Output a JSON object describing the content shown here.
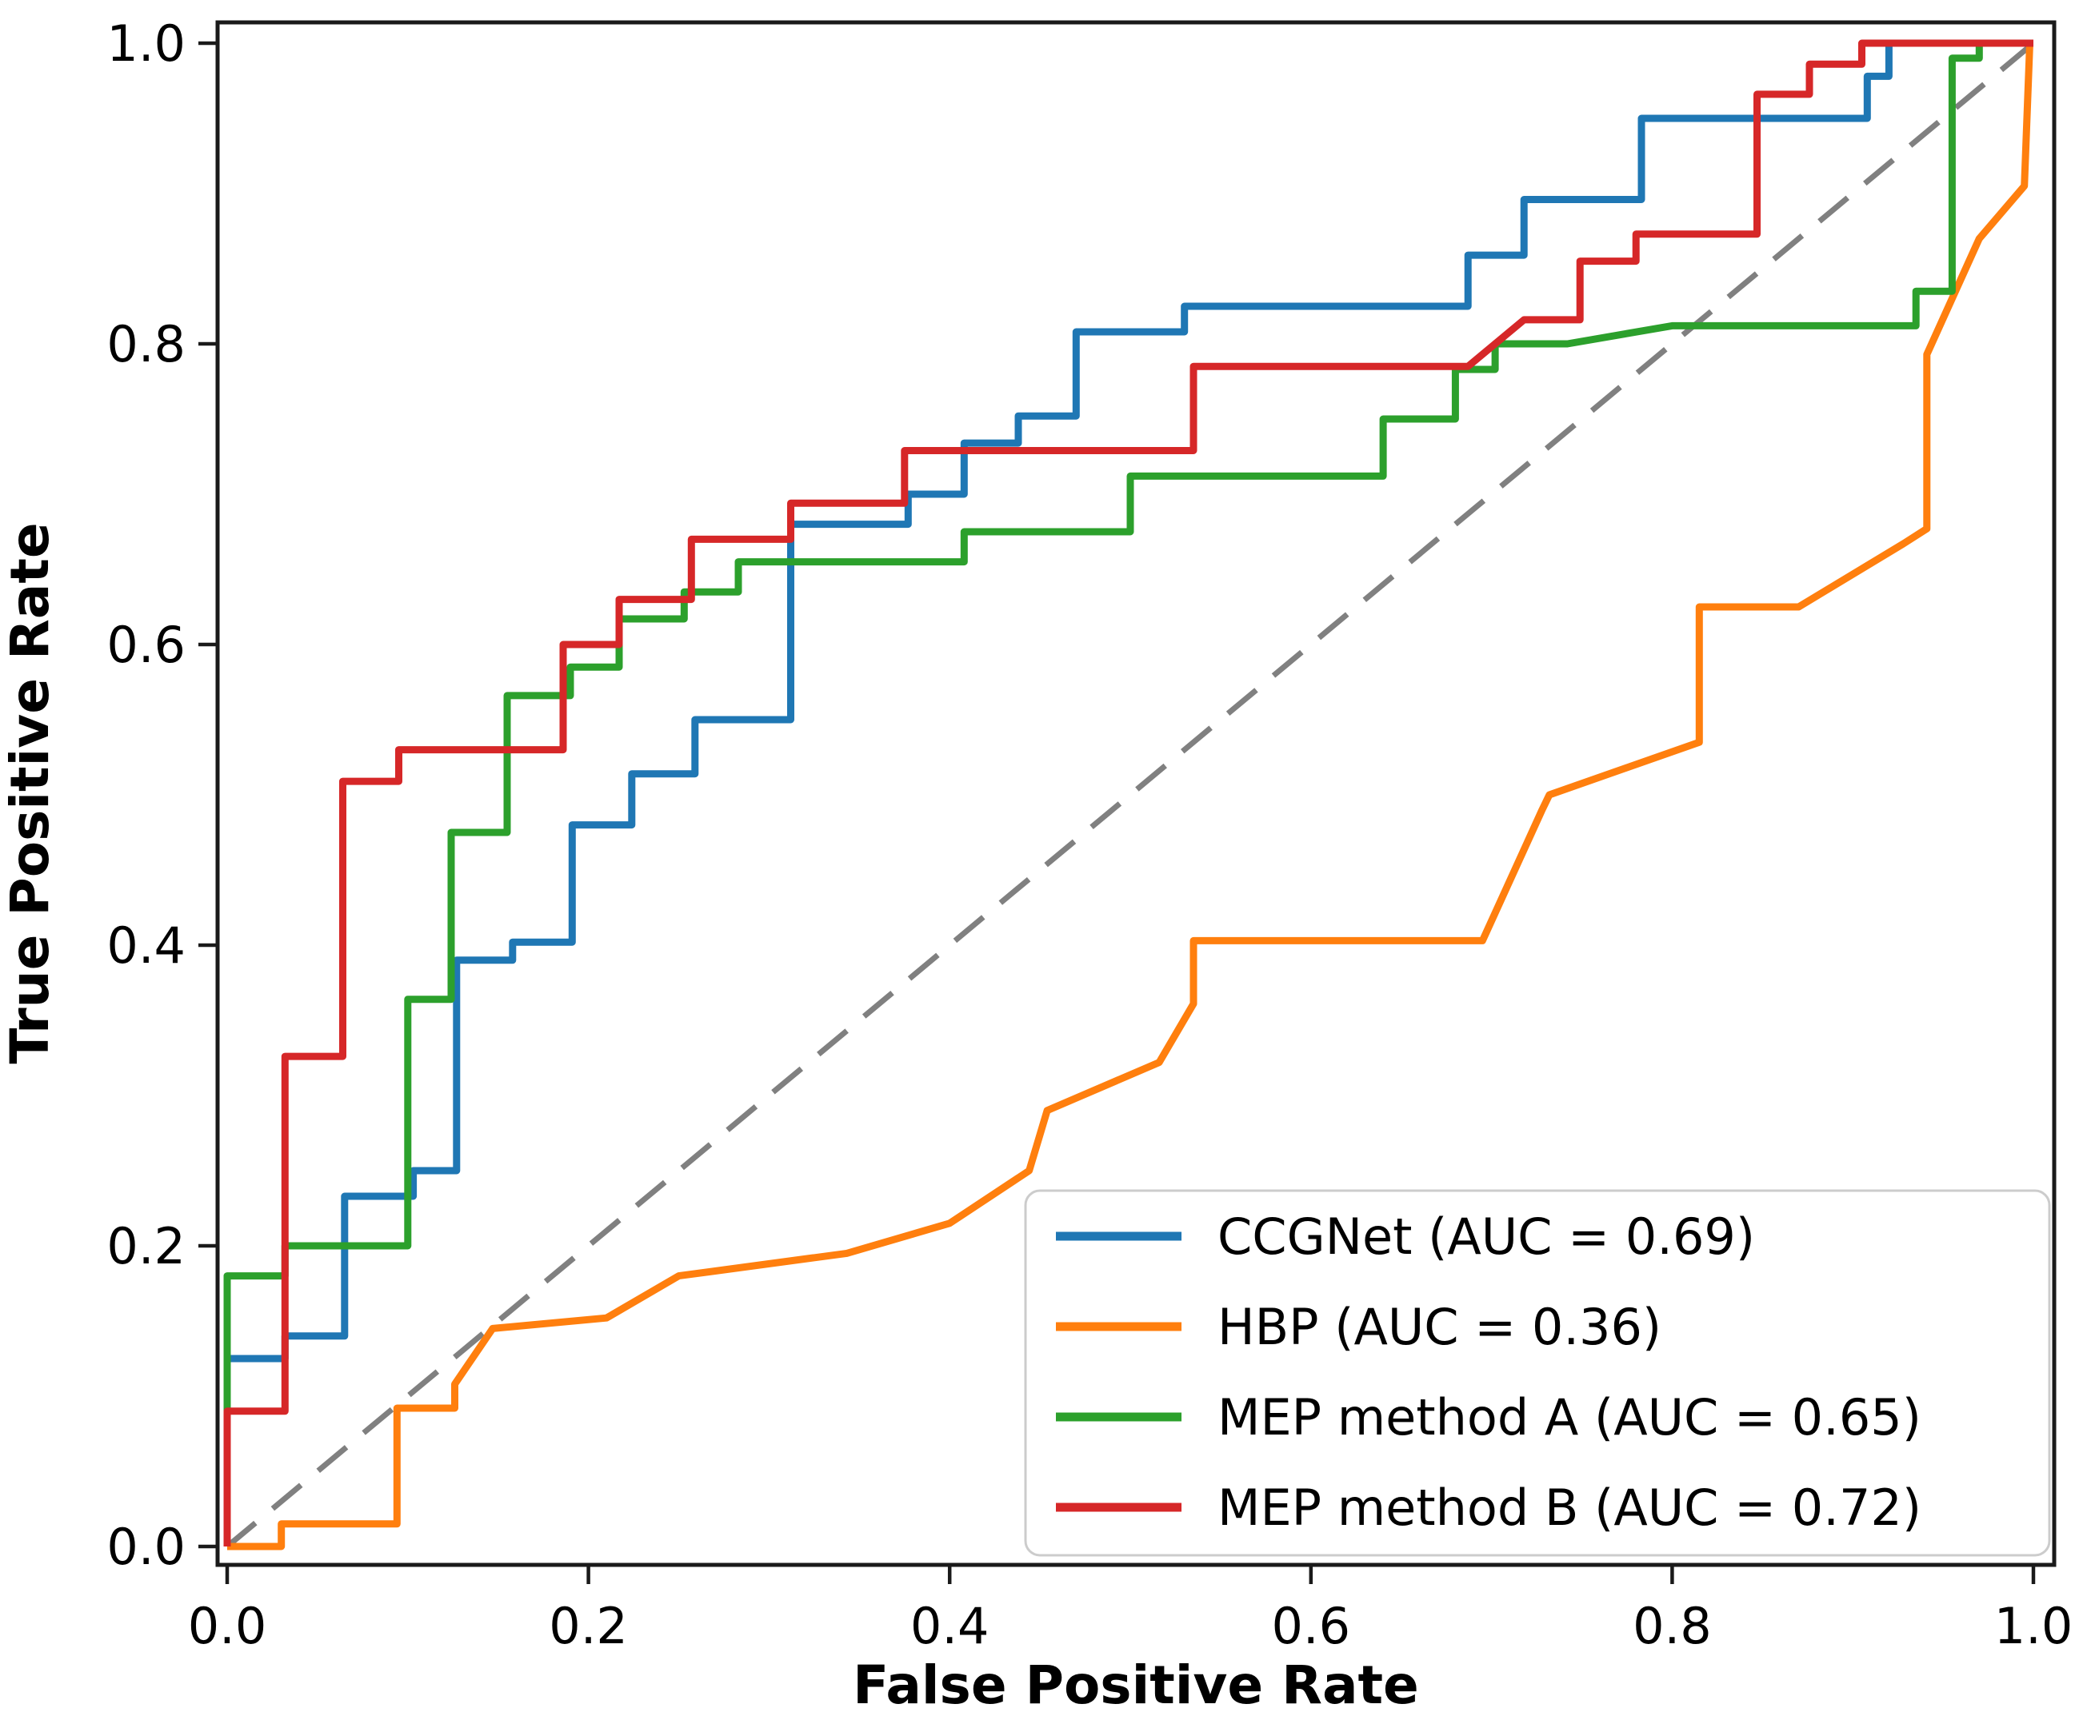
{
  "chart_data": {
    "type": "line",
    "subtype": "roc-step-curves",
    "title": "",
    "xlabel": "False Positive Rate",
    "ylabel": "True Positive Rate",
    "xlim": [
      0.0,
      1.0
    ],
    "ylim": [
      0.0,
      1.0
    ],
    "grid": false,
    "xticks": [
      0.0,
      0.2,
      0.4,
      0.6,
      0.8,
      1.0
    ],
    "yticks": [
      0.0,
      0.2,
      0.4,
      0.6,
      0.8,
      1.0
    ],
    "x_tick_labels": [
      "0.0",
      "0.2",
      "0.4",
      "0.6",
      "0.8",
      "1.0"
    ],
    "y_tick_labels": [
      "0.0",
      "0.2",
      "0.4",
      "0.6",
      "0.8",
      "1.0"
    ],
    "legend_position": "lower right",
    "series": [
      {
        "name": "ccgnet",
        "label": "CCGNet (AUC = 0.69)",
        "auc": 0.69,
        "color": "#1f77b4",
        "points": [
          [
            0,
            0
          ],
          [
            0,
            0.125
          ],
          [
            0.032,
            0.125
          ],
          [
            0.032,
            0.14
          ],
          [
            0.065,
            0.14
          ],
          [
            0.065,
            0.233
          ],
          [
            0.103,
            0.233
          ],
          [
            0.103,
            0.25
          ],
          [
            0.127,
            0.25
          ],
          [
            0.127,
            0.39
          ],
          [
            0.158,
            0.39
          ],
          [
            0.158,
            0.402
          ],
          [
            0.191,
            0.402
          ],
          [
            0.191,
            0.48
          ],
          [
            0.224,
            0.48
          ],
          [
            0.224,
            0.514
          ],
          [
            0.259,
            0.514
          ],
          [
            0.259,
            0.55
          ],
          [
            0.312,
            0.55
          ],
          [
            0.312,
            0.68
          ],
          [
            0.377,
            0.68
          ],
          [
            0.377,
            0.7
          ],
          [
            0.408,
            0.7
          ],
          [
            0.408,
            0.734
          ],
          [
            0.438,
            0.734
          ],
          [
            0.438,
            0.752
          ],
          [
            0.47,
            0.752
          ],
          [
            0.47,
            0.808
          ],
          [
            0.53,
            0.808
          ],
          [
            0.53,
            0.825
          ],
          [
            0.687,
            0.825
          ],
          [
            0.687,
            0.859
          ],
          [
            0.718,
            0.859
          ],
          [
            0.718,
            0.896
          ],
          [
            0.783,
            0.896
          ],
          [
            0.783,
            0.95
          ],
          [
            0.908,
            0.95
          ],
          [
            0.908,
            0.978
          ],
          [
            0.92,
            0.978
          ],
          [
            0.92,
            1
          ],
          [
            1,
            1
          ]
        ]
      },
      {
        "name": "hbp",
        "label": "HBP (AUC = 0.36)",
        "auc": 0.36,
        "color": "#ff7f0e",
        "points": [
          [
            0,
            0
          ],
          [
            0.03,
            0
          ],
          [
            0.03,
            0.015
          ],
          [
            0.094,
            0.015
          ],
          [
            0.094,
            0.092
          ],
          [
            0.126,
            0.092
          ],
          [
            0.126,
            0.108
          ],
          [
            0.147,
            0.145
          ],
          [
            0.21,
            0.152
          ],
          [
            0.25,
            0.18
          ],
          [
            0.343,
            0.195
          ],
          [
            0.4,
            0.215
          ],
          [
            0.444,
            0.25
          ],
          [
            0.454,
            0.29
          ],
          [
            0.516,
            0.322
          ],
          [
            0.535,
            0.361
          ],
          [
            0.535,
            0.403
          ],
          [
            0.695,
            0.403
          ],
          [
            0.728,
            0.49
          ],
          [
            0.732,
            0.5
          ],
          [
            0.815,
            0.535
          ],
          [
            0.815,
            0.625
          ],
          [
            0.87,
            0.625
          ],
          [
            0.928,
            0.667
          ],
          [
            0.941,
            0.677
          ],
          [
            0.941,
            0.793
          ],
          [
            0.97,
            0.87
          ],
          [
            0.995,
            0.905
          ],
          [
            0.998,
            1
          ],
          [
            1,
            1
          ]
        ]
      },
      {
        "name": "mep-method-a",
        "label": "MEP method A (AUC = 0.65)",
        "auc": 0.65,
        "color": "#2ca02c",
        "points": [
          [
            0,
            0
          ],
          [
            0,
            0.18
          ],
          [
            0.032,
            0.18
          ],
          [
            0.032,
            0.2
          ],
          [
            0.1,
            0.2
          ],
          [
            0.1,
            0.364
          ],
          [
            0.124,
            0.364
          ],
          [
            0.124,
            0.475
          ],
          [
            0.155,
            0.475
          ],
          [
            0.155,
            0.566
          ],
          [
            0.19,
            0.566
          ],
          [
            0.19,
            0.585
          ],
          [
            0.217,
            0.585
          ],
          [
            0.217,
            0.617
          ],
          [
            0.253,
            0.617
          ],
          [
            0.253,
            0.635
          ],
          [
            0.283,
            0.635
          ],
          [
            0.283,
            0.655
          ],
          [
            0.408,
            0.655
          ],
          [
            0.408,
            0.675
          ],
          [
            0.5,
            0.675
          ],
          [
            0.5,
            0.712
          ],
          [
            0.64,
            0.712
          ],
          [
            0.64,
            0.75
          ],
          [
            0.68,
            0.75
          ],
          [
            0.68,
            0.783
          ],
          [
            0.702,
            0.783
          ],
          [
            0.702,
            0.8
          ],
          [
            0.742,
            0.8
          ],
          [
            0.8,
            0.812
          ],
          [
            0.935,
            0.812
          ],
          [
            0.935,
            0.835
          ],
          [
            0.955,
            0.835
          ],
          [
            0.955,
            0.99
          ],
          [
            0.97,
            0.99
          ],
          [
            0.97,
            1
          ],
          [
            1,
            1
          ]
        ]
      },
      {
        "name": "mep-method-b",
        "label": "MEP method B (AUC = 0.72)",
        "auc": 0.72,
        "color": "#d62728",
        "points": [
          [
            0,
            0
          ],
          [
            0,
            0.09
          ],
          [
            0.032,
            0.09
          ],
          [
            0.032,
            0.326
          ],
          [
            0.064,
            0.326
          ],
          [
            0.064,
            0.509
          ],
          [
            0.095,
            0.509
          ],
          [
            0.095,
            0.53
          ],
          [
            0.186,
            0.53
          ],
          [
            0.186,
            0.6
          ],
          [
            0.217,
            0.6
          ],
          [
            0.217,
            0.63
          ],
          [
            0.257,
            0.63
          ],
          [
            0.257,
            0.67
          ],
          [
            0.312,
            0.67
          ],
          [
            0.312,
            0.694
          ],
          [
            0.375,
            0.694
          ],
          [
            0.375,
            0.729
          ],
          [
            0.535,
            0.729
          ],
          [
            0.535,
            0.785
          ],
          [
            0.687,
            0.785
          ],
          [
            0.718,
            0.816
          ],
          [
            0.749,
            0.816
          ],
          [
            0.749,
            0.855
          ],
          [
            0.78,
            0.855
          ],
          [
            0.78,
            0.873
          ],
          [
            0.847,
            0.873
          ],
          [
            0.847,
            0.966
          ],
          [
            0.876,
            0.966
          ],
          [
            0.876,
            0.986
          ],
          [
            0.905,
            0.986
          ],
          [
            0.905,
            1
          ],
          [
            1,
            1
          ]
        ]
      }
    ],
    "reference_line": {
      "name": "chance-diagonal",
      "points": [
        [
          0,
          0
        ],
        [
          1,
          1
        ]
      ],
      "color": "#808080",
      "dashed": true
    }
  },
  "style": {
    "curve_width": 9,
    "reference_width": 7,
    "spine_color": "#1a1a1a",
    "legend_border_color": "#cccccc",
    "legend_fill": "#ffffff"
  }
}
